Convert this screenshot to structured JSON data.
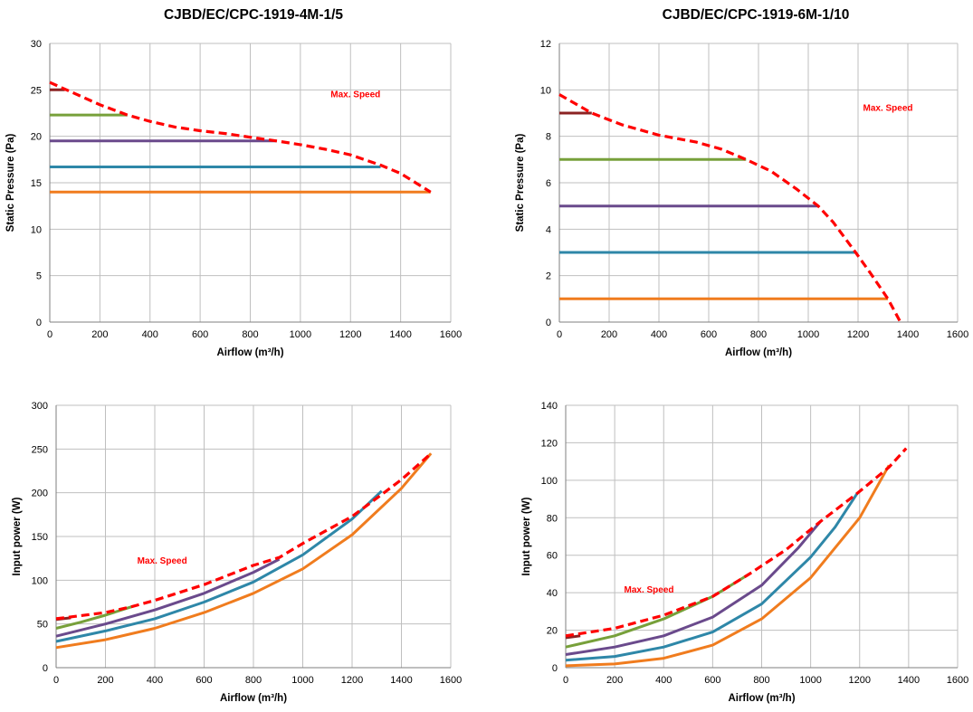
{
  "titles": {
    "left": "CJBD/EC/CPC-1919-4M-1/5",
    "right": "CJBD/EC/CPC-1919-6M-1/10"
  },
  "colors": {
    "max_speed": "#ff0000",
    "dark_red": "#8b2323",
    "green": "#77a03a",
    "purple": "#6a4a8c",
    "teal": "#2e87a8",
    "orange": "#f07c1e",
    "grid": "#bfbfbf",
    "axis": "#7f7f7f"
  },
  "chart_data": [
    {
      "id": "p4m_pressure",
      "type": "line",
      "xlabel": "Airflow (m³/h)",
      "ylabel": "Static Pressure (Pa)",
      "xlim": [
        0,
        1600
      ],
      "ylim": [
        0,
        30
      ],
      "xticks": [
        0,
        200,
        400,
        600,
        800,
        1000,
        1200,
        1400,
        1600
      ],
      "yticks": [
        0,
        5,
        10,
        15,
        20,
        25,
        30
      ],
      "grid": true,
      "annotation": {
        "text": "Max. Speed",
        "x": 1220,
        "y": 24.2
      },
      "series": [
        {
          "color": "dark_red",
          "style": "solid",
          "points": [
            [
              0,
              25
            ],
            [
              60,
              25
            ]
          ]
        },
        {
          "color": "green",
          "style": "solid",
          "points": [
            [
              0,
              22.3
            ],
            [
              310,
              22.3
            ]
          ]
        },
        {
          "color": "purple",
          "style": "solid",
          "points": [
            [
              0,
              19.5
            ],
            [
              905,
              19.5
            ]
          ]
        },
        {
          "color": "teal",
          "style": "solid",
          "points": [
            [
              0,
              16.7
            ],
            [
              1320,
              16.7
            ]
          ]
        },
        {
          "color": "orange",
          "style": "solid",
          "points": [
            [
              0,
              14
            ],
            [
              1520,
              14
            ]
          ]
        },
        {
          "color": "max_speed",
          "style": "dashed",
          "points": [
            [
              0,
              25.8
            ],
            [
              100,
              24.6
            ],
            [
              200,
              23.4
            ],
            [
              310,
              22.3
            ],
            [
              400,
              21.6
            ],
            [
              500,
              21.0
            ],
            [
              600,
              20.6
            ],
            [
              700,
              20.3
            ],
            [
              800,
              19.9
            ],
            [
              905,
              19.5
            ],
            [
              1000,
              19.1
            ],
            [
              1100,
              18.6
            ],
            [
              1200,
              18.0
            ],
            [
              1320,
              16.9
            ],
            [
              1400,
              16.0
            ],
            [
              1460,
              15.0
            ],
            [
              1520,
              14.0
            ]
          ]
        }
      ]
    },
    {
      "id": "p6m_pressure",
      "type": "line",
      "xlabel": "Airflow (m³/h)",
      "ylabel": "Static Pressure (Pa)",
      "xlim": [
        0,
        1600
      ],
      "ylim": [
        0,
        12
      ],
      "xticks": [
        0,
        200,
        400,
        600,
        800,
        1000,
        1200,
        1400,
        1600
      ],
      "yticks": [
        0,
        2,
        4,
        6,
        8,
        10,
        12
      ],
      "grid": true,
      "annotation": {
        "text": "Max. Speed",
        "x": 1320,
        "y": 9.1
      },
      "series": [
        {
          "color": "dark_red",
          "style": "solid",
          "points": [
            [
              0,
              9
            ],
            [
              130,
              9
            ]
          ]
        },
        {
          "color": "green",
          "style": "solid",
          "points": [
            [
              0,
              7
            ],
            [
              750,
              7
            ]
          ]
        },
        {
          "color": "purple",
          "style": "solid",
          "points": [
            [
              0,
              5
            ],
            [
              1040,
              5
            ]
          ]
        },
        {
          "color": "teal",
          "style": "solid",
          "points": [
            [
              0,
              3
            ],
            [
              1190,
              3
            ]
          ]
        },
        {
          "color": "orange",
          "style": "solid",
          "points": [
            [
              0,
              1
            ],
            [
              1320,
              1
            ]
          ]
        },
        {
          "color": "max_speed",
          "style": "dashed",
          "points": [
            [
              0,
              9.8
            ],
            [
              130,
              9.0
            ],
            [
              250,
              8.5
            ],
            [
              400,
              8.05
            ],
            [
              550,
              7.75
            ],
            [
              650,
              7.45
            ],
            [
              750,
              7.0
            ],
            [
              850,
              6.5
            ],
            [
              950,
              5.75
            ],
            [
              1040,
              5.0
            ],
            [
              1100,
              4.3
            ],
            [
              1190,
              3.0
            ],
            [
              1250,
              2.1
            ],
            [
              1320,
              1.0
            ],
            [
              1370,
              0.0
            ]
          ]
        }
      ]
    },
    {
      "id": "p4m_power",
      "type": "line",
      "xlabel": "Airflow (m³/h)",
      "ylabel": "Input power (W)",
      "xlim": [
        0,
        1600
      ],
      "ylim": [
        0,
        300
      ],
      "xticks": [
        0,
        200,
        400,
        600,
        800,
        1000,
        1200,
        1400,
        1600
      ],
      "yticks": [
        0,
        50,
        100,
        150,
        200,
        250,
        300
      ],
      "grid": true,
      "annotation": {
        "text": "Max. Speed",
        "x": 430,
        "y": 119
      },
      "series": [
        {
          "color": "dark_red",
          "style": "solid",
          "points": [
            [
              0,
              55
            ],
            [
              60,
              57
            ]
          ]
        },
        {
          "color": "green",
          "style": "solid",
          "points": [
            [
              0,
              45
            ],
            [
              100,
              52
            ],
            [
              200,
              60
            ],
            [
              310,
              70
            ]
          ]
        },
        {
          "color": "purple",
          "style": "solid",
          "points": [
            [
              0,
              36
            ],
            [
              200,
              50
            ],
            [
              400,
              66
            ],
            [
              600,
              85
            ],
            [
              800,
              109
            ],
            [
              905,
              124
            ]
          ]
        },
        {
          "color": "teal",
          "style": "solid",
          "points": [
            [
              0,
              30
            ],
            [
              200,
              42
            ],
            [
              400,
              56
            ],
            [
              600,
              75
            ],
            [
              800,
              98
            ],
            [
              1000,
              129
            ],
            [
              1200,
              170
            ],
            [
              1320,
              202
            ]
          ]
        },
        {
          "color": "orange",
          "style": "solid",
          "points": [
            [
              0,
              23
            ],
            [
              200,
              32
            ],
            [
              400,
              45
            ],
            [
              600,
              63
            ],
            [
              800,
              85
            ],
            [
              1000,
              113
            ],
            [
              1200,
              152
            ],
            [
              1400,
              205
            ],
            [
              1520,
              245
            ]
          ]
        },
        {
          "color": "max_speed",
          "style": "dashed",
          "points": [
            [
              0,
              56
            ],
            [
              200,
              63
            ],
            [
              310,
              70
            ],
            [
              400,
              77
            ],
            [
              600,
              95
            ],
            [
              800,
              117
            ],
            [
              905,
              126
            ],
            [
              1000,
              142
            ],
            [
              1200,
              173
            ],
            [
              1320,
              198
            ],
            [
              1400,
              215
            ],
            [
              1520,
              245
            ]
          ]
        }
      ]
    },
    {
      "id": "p6m_power",
      "type": "line",
      "xlabel": "Airflow (m³/h)",
      "ylabel": "Input power (W)",
      "xlim": [
        0,
        1600
      ],
      "ylim": [
        0,
        140
      ],
      "xticks": [
        0,
        200,
        400,
        600,
        800,
        1000,
        1200,
        1400,
        1600
      ],
      "yticks": [
        0,
        20,
        40,
        60,
        80,
        100,
        120,
        140
      ],
      "grid": true,
      "annotation": {
        "text": "Max. Speed",
        "x": 340,
        "y": 40
      },
      "series": [
        {
          "color": "dark_red",
          "style": "solid",
          "points": [
            [
              0,
              16
            ],
            [
              60,
              17
            ]
          ]
        },
        {
          "color": "green",
          "style": "solid",
          "points": [
            [
              0,
              11
            ],
            [
              200,
              17
            ],
            [
              400,
              26
            ],
            [
              600,
              38
            ],
            [
              750,
              50
            ]
          ]
        },
        {
          "color": "purple",
          "style": "solid",
          "points": [
            [
              0,
              7
            ],
            [
              200,
              11
            ],
            [
              400,
              17
            ],
            [
              600,
              27
            ],
            [
              800,
              44
            ],
            [
              950,
              64
            ],
            [
              1040,
              78
            ]
          ]
        },
        {
          "color": "teal",
          "style": "solid",
          "points": [
            [
              0,
              4
            ],
            [
              200,
              6
            ],
            [
              400,
              11
            ],
            [
              600,
              19
            ],
            [
              800,
              34
            ],
            [
              1000,
              59
            ],
            [
              1100,
              75
            ],
            [
              1190,
              93
            ]
          ]
        },
        {
          "color": "orange",
          "style": "solid",
          "points": [
            [
              0,
              1
            ],
            [
              200,
              2
            ],
            [
              400,
              5
            ],
            [
              600,
              12
            ],
            [
              800,
              26
            ],
            [
              1000,
              48
            ],
            [
              1200,
              80
            ],
            [
              1320,
              108
            ]
          ]
        },
        {
          "color": "max_speed",
          "style": "dashed",
          "points": [
            [
              0,
              17
            ],
            [
              200,
              21
            ],
            [
              400,
              28
            ],
            [
              600,
              38
            ],
            [
              750,
              50
            ],
            [
              900,
              63
            ],
            [
              1040,
              78
            ],
            [
              1190,
              93
            ],
            [
              1320,
              107
            ],
            [
              1390,
              117
            ]
          ]
        }
      ]
    }
  ]
}
